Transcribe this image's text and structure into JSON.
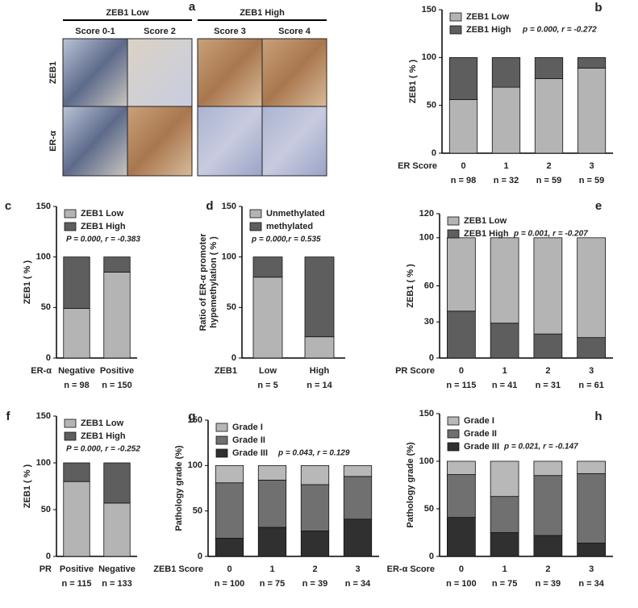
{
  "image_panel": {
    "letter": "a",
    "groups": [
      "ZEB1 Low",
      "ZEB1 High"
    ],
    "columns": [
      "Score 0-1",
      "Score 2",
      "Score 3",
      "Score 4"
    ],
    "rows": [
      "ZEB1",
      "ER-α"
    ]
  },
  "chart_data": [
    {
      "type": "bar",
      "stacked": true,
      "letter": "b",
      "ylabel": "ZEB1 ( % )",
      "xlabel": "ER Score",
      "categories": [
        "0",
        "1",
        "2",
        "3"
      ],
      "n_labels": [
        "n = 98",
        "n = 32",
        "n = 59",
        "n = 59"
      ],
      "series": [
        {
          "name": "ZEB1 Low",
          "color": "#b4b4b4",
          "values": [
            56,
            69,
            78,
            89
          ]
        },
        {
          "name": "ZEB1 High",
          "color": "#5e5e5e",
          "values": [
            44,
            31,
            22,
            11
          ]
        }
      ],
      "stack_order": [
        0,
        1
      ],
      "ylim": [
        0,
        150
      ],
      "yticks": [
        0,
        50,
        100,
        150
      ],
      "annotation": "p = 0.000, r = -0.272",
      "legend": "upper left"
    },
    {
      "type": "bar",
      "stacked": true,
      "letter": "c",
      "ylabel": "ZEB1 ( % )",
      "xlabel": "ER-α",
      "categories": [
        "Negative",
        "Positive"
      ],
      "n_labels": [
        "n = 98",
        "n = 150"
      ],
      "series": [
        {
          "name": "ZEB1 Low",
          "color": "#b4b4b4",
          "values": [
            49,
            85
          ]
        },
        {
          "name": "ZEB1 High",
          "color": "#5e5e5e",
          "values": [
            51,
            15
          ]
        }
      ],
      "stack_order": [
        0,
        1
      ],
      "ylim": [
        0,
        150
      ],
      "yticks": [
        0,
        50,
        100,
        150
      ],
      "annotation": "P = 0.000, r = -0.383",
      "legend": "upper left"
    },
    {
      "type": "bar",
      "stacked": true,
      "letter": "d",
      "ylabel": [
        "Ratio of ER-α promoter",
        "hypemethylation ( % )"
      ],
      "xlabel": "ZEB1",
      "categories": [
        "Low",
        "High"
      ],
      "n_labels": [
        "n = 5",
        "n = 14"
      ],
      "series": [
        {
          "name": "Unmethylated",
          "color": "#b4b4b4",
          "values": [
            80,
            21
          ]
        },
        {
          "name": "methylated",
          "color": "#5e5e5e",
          "values": [
            20,
            79
          ]
        }
      ],
      "stack_order": [
        0,
        1
      ],
      "ylim": [
        0,
        150
      ],
      "yticks": [
        0,
        50,
        100,
        150
      ],
      "annotation": "p = 0.000,r = 0.535",
      "legend": "upper left"
    },
    {
      "type": "bar",
      "stacked": true,
      "letter": "e",
      "ylabel": "ZEB1 ( % )",
      "xlabel": "PR Score",
      "categories": [
        "0",
        "1",
        "2",
        "3"
      ],
      "n_labels": [
        "n = 115",
        "n = 41",
        "n = 31",
        "n = 61"
      ],
      "series": [
        {
          "name": "ZEB1 Low",
          "color": "#b4b4b4",
          "values": [
            61,
            71,
            80,
            83
          ]
        },
        {
          "name": "ZEB1 High",
          "color": "#5e5e5e",
          "values": [
            39,
            29,
            20,
            17
          ]
        }
      ],
      "stack_order": [
        1,
        0
      ],
      "ylim": [
        0,
        120
      ],
      "yticks": [
        0,
        30,
        60,
        100,
        120
      ],
      "annotation": "p = 0.001, r = -0.207",
      "legend": "upper left"
    },
    {
      "type": "bar",
      "stacked": true,
      "letter": "f",
      "ylabel": "ZEB1 ( % )",
      "xlabel": "PR",
      "categories": [
        "Positive",
        "Negative"
      ],
      "n_labels": [
        "n = 115",
        "n = 133"
      ],
      "series": [
        {
          "name": "ZEB1 Low",
          "color": "#b4b4b4",
          "values": [
            80,
            57
          ]
        },
        {
          "name": "ZEB1 High",
          "color": "#5e5e5e",
          "values": [
            20,
            43
          ]
        }
      ],
      "stack_order": [
        0,
        1
      ],
      "ylim": [
        0,
        150
      ],
      "yticks": [
        0,
        50,
        100,
        150
      ],
      "annotation": "P = 0.000,  r = -0.252",
      "legend": "upper left"
    },
    {
      "type": "bar",
      "stacked": true,
      "letter": "g",
      "ylabel": "Pathology grade (%)",
      "xlabel": "ZEB1 Score",
      "categories": [
        "0",
        "1",
        "2",
        "3"
      ],
      "n_labels": [
        "n = 100",
        "n = 75",
        "n = 39",
        "n = 34"
      ],
      "series": [
        {
          "name": "Grade I",
          "color": "#b8b8b8",
          "values": [
            19,
            16,
            21,
            12
          ]
        },
        {
          "name": "Grade II",
          "color": "#707070",
          "values": [
            61,
            52,
            51,
            47
          ]
        },
        {
          "name": "Grade III",
          "color": "#303030",
          "values": [
            20,
            32,
            28,
            41
          ]
        }
      ],
      "stack_order": [
        2,
        1,
        0
      ],
      "ylim": [
        0,
        150
      ],
      "yticks": [
        0,
        50,
        100,
        150
      ],
      "annotation": "p = 0.043, r = 0.129",
      "legend": "upper left"
    },
    {
      "type": "bar",
      "stacked": true,
      "letter": "h",
      "ylabel": "Pathology grade (%)",
      "xlabel": "ER-α Score",
      "categories": [
        "0",
        "1",
        "2",
        "3"
      ],
      "n_labels": [
        "n = 100",
        "n = 75",
        "n = 39",
        "n = 34"
      ],
      "series": [
        {
          "name": "Grade I",
          "color": "#b8b8b8",
          "values": [
            14,
            37,
            15,
            13
          ]
        },
        {
          "name": "Grade II",
          "color": "#707070",
          "values": [
            45,
            38,
            63,
            73
          ]
        },
        {
          "name": "Grade III",
          "color": "#303030",
          "values": [
            41,
            25,
            22,
            14
          ]
        }
      ],
      "stack_order": [
        2,
        1,
        0
      ],
      "ylim": [
        0,
        150
      ],
      "yticks": [
        0,
        50,
        100,
        150
      ],
      "annotation": "p = 0.021,  r = -0.147",
      "legend": "upper left"
    }
  ]
}
